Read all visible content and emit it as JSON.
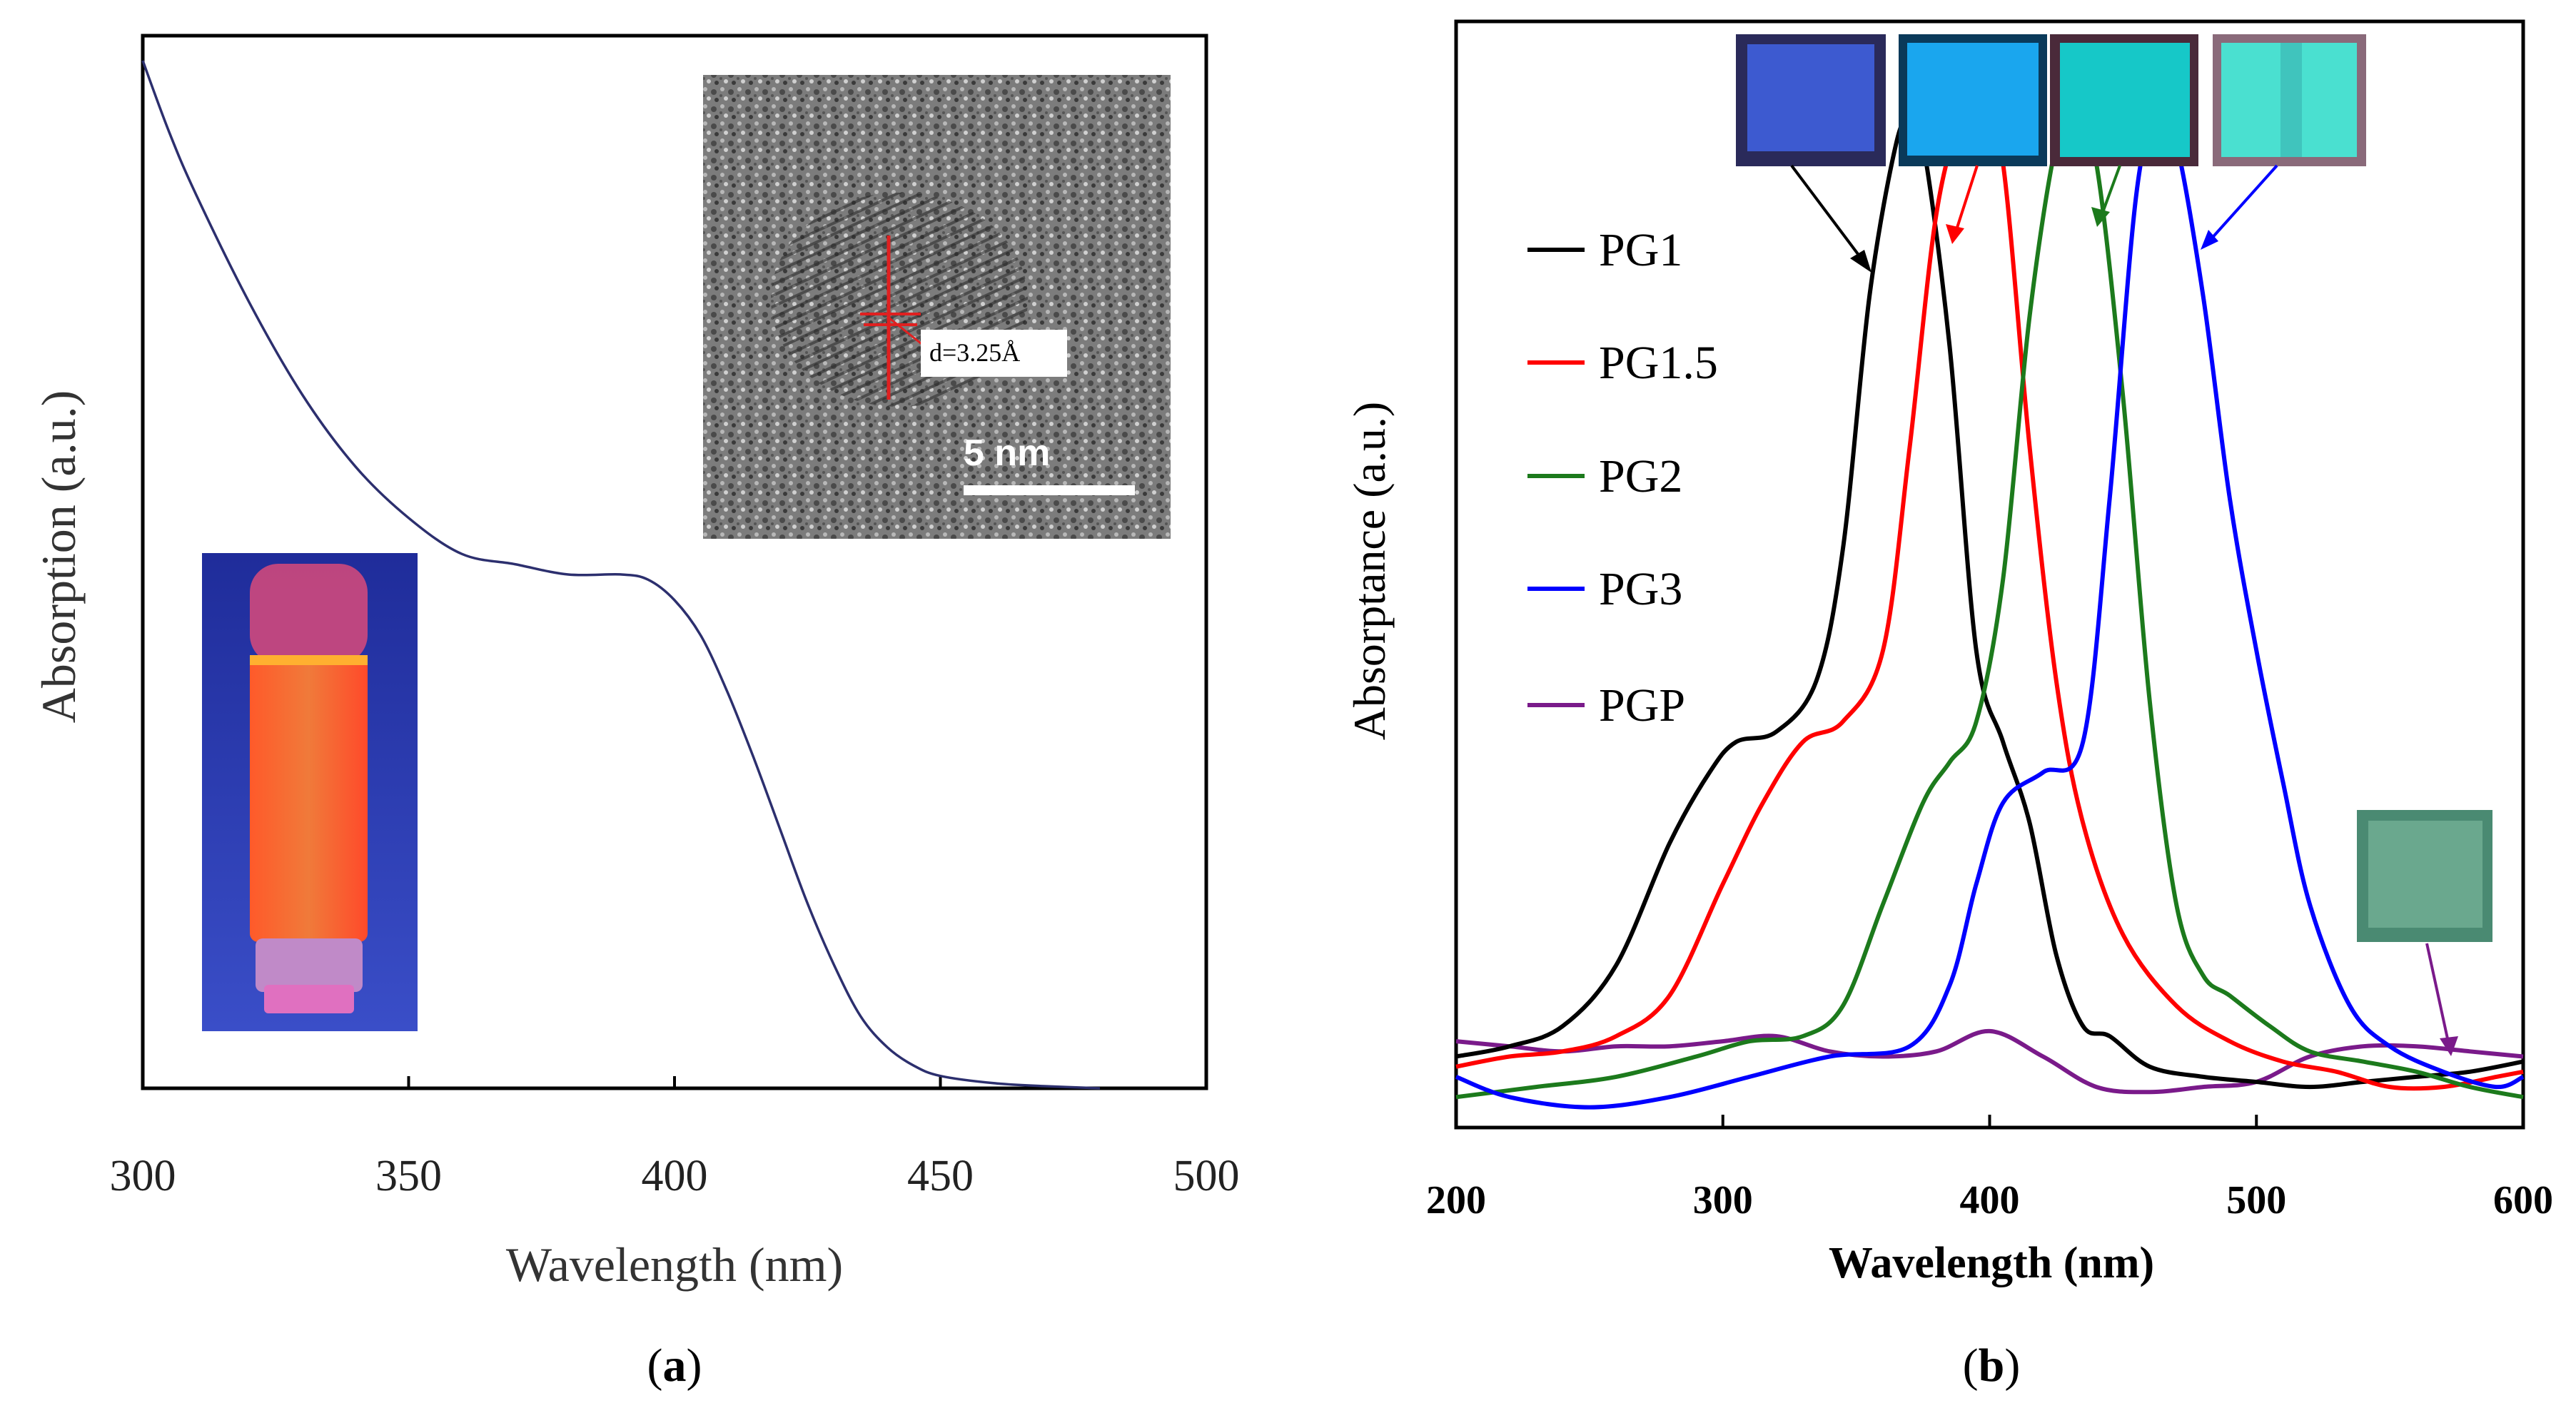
{
  "chart_data": [
    {
      "panel": "a",
      "type": "line",
      "caption_letter": "a",
      "xlabel": "Wavelength (nm)",
      "ylabel": "Absorption (a.u.)",
      "xlim": [
        300,
        500
      ],
      "xticks": [
        "300",
        "350",
        "400",
        "450",
        "500"
      ],
      "series": [
        {
          "name": "absorption",
          "color": "#2c2f6e",
          "x": [
            300,
            305,
            310,
            320,
            330,
            340,
            350,
            360,
            370,
            380,
            390,
            395,
            400,
            405,
            410,
            415,
            420,
            425,
            430,
            435,
            440,
            445,
            450,
            460,
            470,
            480
          ],
          "y": [
            1.0,
            0.93,
            0.87,
            0.765,
            0.675,
            0.605,
            0.555,
            0.52,
            0.51,
            0.5,
            0.5,
            0.495,
            0.475,
            0.44,
            0.385,
            0.32,
            0.25,
            0.18,
            0.12,
            0.07,
            0.04,
            0.022,
            0.012,
            0.005,
            0.002,
            0.0
          ]
        }
      ],
      "insets": {
        "tem_annotation": "d=3.25Å",
        "scale_bar": "5 nm"
      }
    },
    {
      "panel": "b",
      "type": "line",
      "caption_letter": "b",
      "xlabel": "Wavelength (nm)",
      "ylabel": "Absorptance (a.u.)",
      "xlim": [
        200,
        600
      ],
      "xticks": [
        "200",
        "300",
        "400",
        "500",
        "600"
      ],
      "legend_position": "top-left",
      "series": [
        {
          "name": "PG1",
          "color": "#000000",
          "x": [
            200,
            220,
            240,
            260,
            280,
            295,
            305,
            320,
            335,
            345,
            355,
            365,
            370,
            375,
            385,
            395,
            405,
            415,
            425,
            435,
            445,
            460,
            480,
            500,
            520,
            540,
            560,
            580,
            600
          ],
          "y": [
            0.05,
            0.06,
            0.08,
            0.14,
            0.26,
            0.33,
            0.36,
            0.37,
            0.42,
            0.55,
            0.8,
            0.95,
            0.97,
            0.95,
            0.75,
            0.45,
            0.36,
            0.28,
            0.15,
            0.08,
            0.07,
            0.04,
            0.03,
            0.025,
            0.02,
            0.025,
            0.03,
            0.035,
            0.045
          ]
        },
        {
          "name": "PG1.5",
          "color": "#ff0000",
          "x": [
            200,
            220,
            240,
            260,
            280,
            300,
            315,
            330,
            345,
            360,
            370,
            380,
            390,
            397,
            405,
            415,
            425,
            435,
            450,
            470,
            490,
            510,
            530,
            550,
            570,
            590,
            600
          ],
          "y": [
            0.04,
            0.05,
            0.055,
            0.07,
            0.11,
            0.22,
            0.3,
            0.36,
            0.38,
            0.45,
            0.65,
            0.88,
            0.98,
            0.99,
            0.93,
            0.65,
            0.42,
            0.28,
            0.17,
            0.1,
            0.065,
            0.045,
            0.035,
            0.02,
            0.02,
            0.03,
            0.035
          ]
        },
        {
          "name": "PG2",
          "color": "#1c7a1c",
          "x": [
            200,
            230,
            260,
            290,
            310,
            330,
            345,
            360,
            375,
            385,
            395,
            405,
            415,
            425,
            432,
            440,
            450,
            460,
            470,
            480,
            490,
            505,
            520,
            540,
            560,
            580,
            600
          ],
          "y": [
            0.01,
            0.02,
            0.03,
            0.05,
            0.065,
            0.07,
            0.1,
            0.2,
            0.3,
            0.34,
            0.38,
            0.52,
            0.78,
            0.95,
            0.98,
            0.93,
            0.7,
            0.4,
            0.2,
            0.13,
            0.11,
            0.08,
            0.055,
            0.045,
            0.035,
            0.02,
            0.01
          ]
        },
        {
          "name": "PG3",
          "color": "#0000ff",
          "x": [
            200,
            220,
            250,
            280,
            310,
            340,
            370,
            385,
            395,
            405,
            420,
            435,
            445,
            455,
            463,
            470,
            480,
            490,
            500,
            510,
            520,
            535,
            550,
            570,
            590,
            600
          ],
          "y": [
            0.03,
            0.01,
            0.0,
            0.01,
            0.03,
            0.05,
            0.06,
            0.12,
            0.22,
            0.3,
            0.33,
            0.36,
            0.6,
            0.9,
            0.98,
            0.95,
            0.8,
            0.6,
            0.45,
            0.32,
            0.2,
            0.1,
            0.06,
            0.035,
            0.02,
            0.03
          ]
        },
        {
          "name": "PGP",
          "color": "#7a1a8a",
          "x": [
            200,
            220,
            240,
            260,
            280,
            300,
            320,
            340,
            360,
            380,
            400,
            420,
            440,
            460,
            480,
            500,
            520,
            540,
            560,
            580,
            600
          ],
          "y": [
            0.065,
            0.06,
            0.055,
            0.06,
            0.06,
            0.065,
            0.07,
            0.055,
            0.05,
            0.055,
            0.075,
            0.05,
            0.02,
            0.015,
            0.02,
            0.025,
            0.05,
            0.06,
            0.06,
            0.055,
            0.05
          ]
        }
      ],
      "ylim": [
        -0.02,
        1.07
      ]
    }
  ]
}
